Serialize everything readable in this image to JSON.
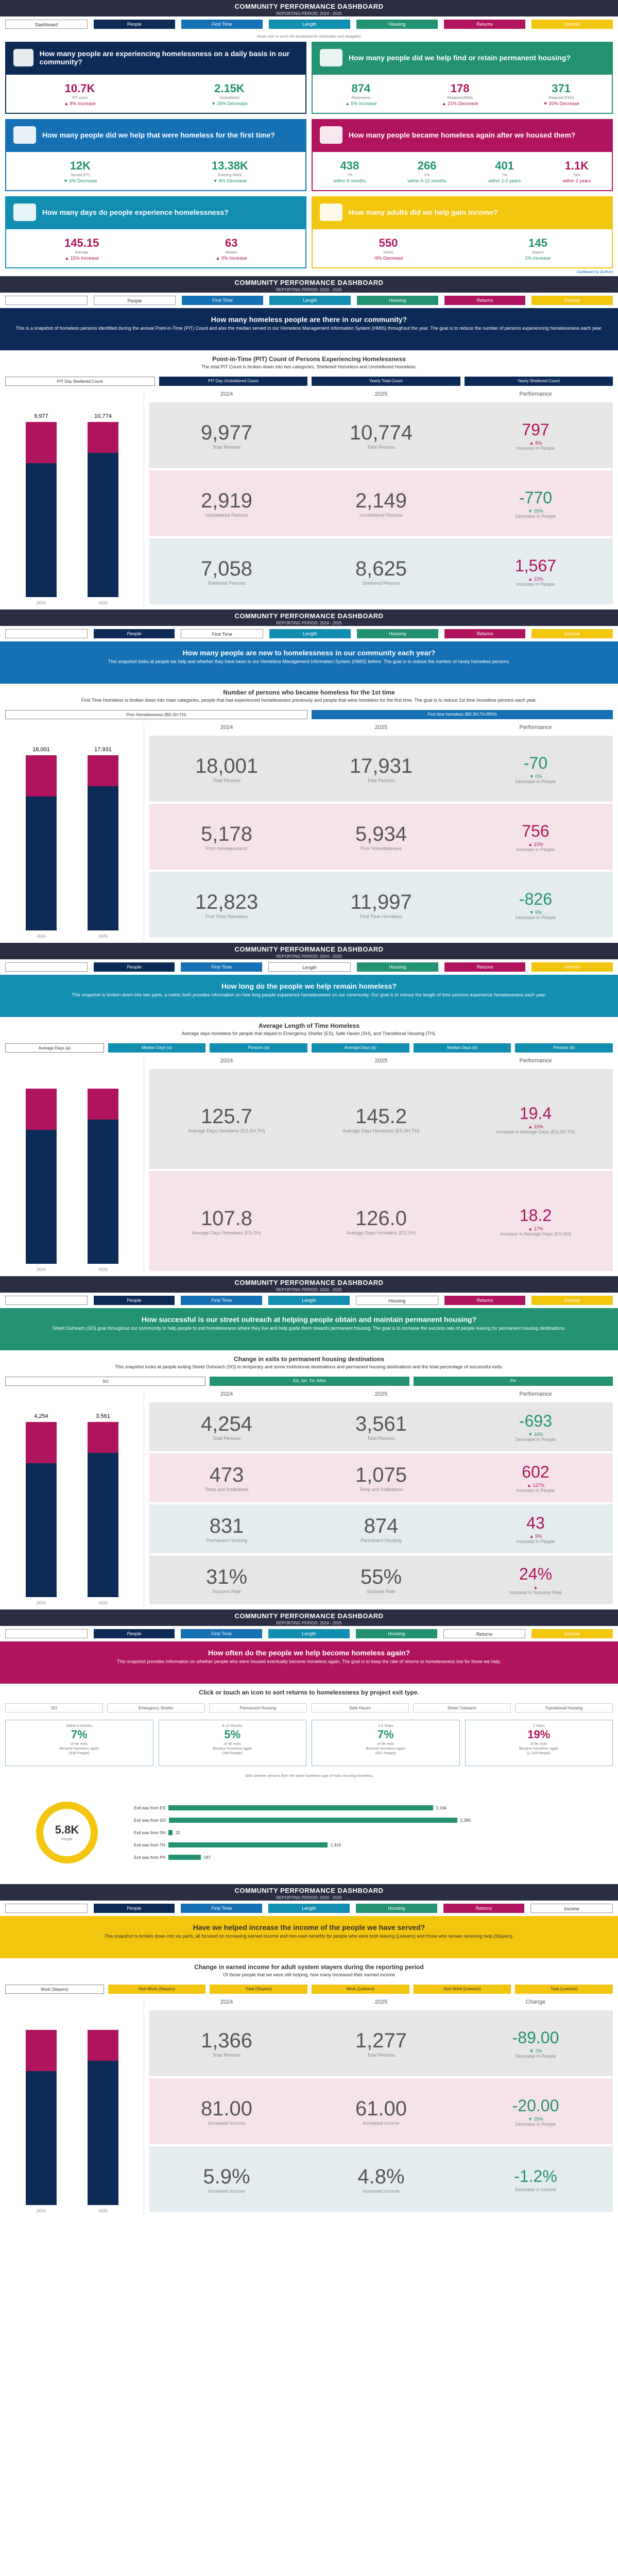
{
  "header": {
    "title": "COMMUNITY PERFORMANCE DASHBOARD",
    "subtitle": "REPORTING PERIOD: 2024 - 2025"
  },
  "nav": [
    "Dashboard",
    "People",
    "First Time",
    "Length",
    "Housing",
    "Returns",
    "Income"
  ],
  "hint": "Hover over or touch the dashboard for information and navigation",
  "tiles": {
    "t1": {
      "q": "How many people are experiencing homelessness on a daily basis in our community?",
      "a": "10.7K",
      "al": "PIT count",
      "ap": "▲ 8% Increase",
      "b": "2.15K",
      "bl": "Unsheltered",
      "bp": "▼ 26% Decrease"
    },
    "t2": {
      "q": "How many people did we help find or retain permanent housing?",
      "a": "874",
      "al": "Placements",
      "ap": "▲ 5% Increase",
      "b": "178",
      "bl": "Retained (RRH)",
      "bp": "▲ 21% Decrease",
      "c": "371",
      "cl": "Retained (PSH)",
      "cp": "▼ 20% Decrease"
    },
    "t3": {
      "q": "How many people did we help that were homeless for the first time?",
      "a": "12K",
      "al": "Served (FT)",
      "ap": "▼ 6% Decrease",
      "b": "13.38K",
      "bl": "Entering HMIS",
      "bp": "▼ 6% Decrease"
    },
    "t4": {
      "q": "How many people became homeless again after we housed them?",
      "a": "438",
      "al": "7%",
      "ap": "within 6 months",
      "b": "266",
      "bl": "5%",
      "bp": "within 6-12 months",
      "c": "401",
      "cl": "7%",
      "cp": "within 1-2 years",
      "d": "1.1K",
      "dl": "19%",
      "dp": "within 2 years"
    },
    "t5": {
      "q": "How many days do people experience homelessness?",
      "a": "145.15",
      "al": "Average",
      "ap": "▲ 15% Increase",
      "b": "63",
      "bl": "Median",
      "bp": "▲ 9% Increase"
    },
    "t6": {
      "q": "How many adults did we help gain income?",
      "a": "550",
      "al": "Adults",
      "ap": "-9% Decrease",
      "b": "145",
      "bl": "Stayers",
      "bp": "2% Increase"
    }
  },
  "foot": "Dashboard by [Author]",
  "s1": {
    "bt": "How many homeless people are there in our community?",
    "bd": "This is a snapshot of homeless persons identified during the annual Point-in-Time (PIT) Count and also the median served in our Homeless Management Information System (HMIS) throughout the year. The goal is to reduce the number of persons experiencing homelessness each year.",
    "st": "Point-in-Time (PIT) Count of Persons Experiencing Homelessness",
    "sb": "The total PIT Count is broken down into two categories, Sheltered Homeless and Unsheltered Homeless.",
    "btns": [
      "PIT Day Sheltered Count",
      "PIT Day Unsheltered Count",
      "Yearly Total Count",
      "Yearly Sheltered Count"
    ],
    "heads": [
      "2024",
      "2025",
      "Performance"
    ],
    "rows": [
      [
        "9,977",
        "Total Persons",
        "10,774",
        "Total Persons",
        "797",
        "▲ 8%",
        "Increase in People"
      ],
      [
        "2,919",
        "Unsheltered Persons",
        "2,149",
        "Unsheltered Persons",
        "-770",
        "▼ 26%",
        "Decrease in People"
      ],
      [
        "7,058",
        "Sheltered Persons",
        "8,625",
        "Sheltered Persons",
        "1,567",
        "▲ 22%",
        "Increase in People"
      ]
    ],
    "v1": "9,977",
    "v2": "10,774"
  },
  "s2": {
    "bt": "How many people are new to homelessness in our community each year?",
    "bd": "This snapshot looks at people we help and whether they have been in our Homeless Management Information System (HMIS) before. The goal is to reduce the number of newly homeless persons.",
    "st": "Number of persons who became homeless for the 1st time",
    "sb": "First Time Homeless is broken down into main categories, people that had experienced homelessness previously and people that were homeless for the first time. The goal is to reduce 1st time homeless persons each year.",
    "btns": [
      "Prior Homelessness (BD,SH,TH)",
      "First time homeless (BD,SH,TH,RRH)"
    ],
    "heads": [
      "2024",
      "2025",
      "Performance"
    ],
    "rows": [
      [
        "18,001",
        "Total Persons",
        "17,931",
        "Total Persons",
        "-70",
        "▼ 0%",
        "Decrease in People"
      ],
      [
        "5,178",
        "Prior Homelessness",
        "5,934",
        "Prior Homelessness",
        "756",
        "▲ 15%",
        "Increase in People"
      ],
      [
        "12,823",
        "First Time Homeless",
        "11,997",
        "First Time Homeless",
        "-826",
        "▼ 6%",
        "Decrease in People"
      ]
    ],
    "v1": "18,001",
    "v2": "17,931"
  },
  "s3": {
    "bt": "How long do the people we help remain homeless?",
    "bd": "This snapshot is broken down into two parts, a metric both provides information on how long people experience homelessness on our community. Our goal is to reduce the length of time persons experience homelessness each year.",
    "st": "Average Length of Time Homeless",
    "sb": "Average days homeless for people that stayed in Emergency Shelter (ES), Safe Haven (SH), and Transitional Housing (TH).",
    "btns": [
      "Average Days (a)",
      "Median Days (a)",
      "Persons (a)",
      "Average Days (b)",
      "Median Days (b)",
      "Persons (b)"
    ],
    "heads": [
      "2024",
      "2025",
      "Performance"
    ],
    "rows": [
      [
        "125.7",
        "Average Days Homeless (ES,SH,TH)",
        "145.2",
        "Average Days Homeless (ES,SH,TH)",
        "19.4",
        "▲ 15%",
        "Increase in Average Days (ES,SH,TH)"
      ],
      [
        "107.8",
        "Average Days Homeless (ES,SH)",
        "126.0",
        "Average Days Homeless (ES,SH)",
        "18.2",
        "▲ 17%",
        "Increase in Average Days (ES,SH)"
      ]
    ]
  },
  "s4": {
    "bt": "How successful is our street outreach at helping people obtain and maintain permanent housing?",
    "bd": "Street Outreach (SO) goal throughout our community to help people to exit homelessness where they live and help guide them towards permanent housing. The goal is to increase the success rate of people leaving for permanent housing destinations.",
    "st": "Change in exits to permanent housing destinations",
    "sb": "This snapshot looks at people exiting Street Outreach (SO) to temporary and some institutional destinations and permanent housing destinations and the total percentage of successful exits.",
    "btns": [
      "SO",
      "ES, SH, TH, RRH",
      "PH"
    ],
    "heads": [
      "2024",
      "2025",
      "Performance"
    ],
    "rows": [
      [
        "4,254",
        "Total Persons",
        "3,561",
        "Total Persons",
        "-693",
        "▼ 16%",
        "Decrease in People"
      ],
      [
        "473",
        "Temp and Institutions",
        "1,075",
        "Temp and Institutions",
        "602",
        "▲ 127%",
        "Increase in People"
      ],
      [
        "831",
        "Permanent Housing",
        "874",
        "Permanent Housing",
        "43",
        "▲ 5%",
        "Increase in People"
      ],
      [
        "31%",
        "Success Rate",
        "55%",
        "Success Rate",
        "24%",
        "▲",
        "Increase in Success Rate"
      ]
    ],
    "v1": "4,254",
    "v2": "3,561"
  },
  "s5": {
    "bt": "How often do the people we help become homeless again?",
    "bd": "This snapshot provides information on whether people who were housed eventually become homeless again. The goal is to keep the rate of returns to homelessness low for those we help.",
    "st": "Click or touch an icon to sort returns to homelessness by project exit type.",
    "types": [
      "SO",
      "Emergency Shelter",
      "Permanent Housing",
      "Safe Haven",
      "Street Outreach",
      "Transitional Housing"
    ],
    "tiles": [
      [
        "Within 6 Months",
        "7%",
        "of 6K exits",
        "Became homeless again",
        "(438 People)"
      ],
      [
        "6-12 Months",
        "5%",
        "of 6K exits",
        "Became homeless again",
        "(266 People)"
      ],
      [
        "1-2 Years",
        "7%",
        "of 6K exits",
        "Became homeless again",
        "(401 People)"
      ],
      [
        "2 Years",
        "19%",
        "of 6K exits",
        "Became homeless again",
        "(1,109 People)"
      ]
    ],
    "donut": "5.8K",
    "dl": "People",
    "bars": [
      [
        "Exit was from ES",
        "2,194"
      ],
      [
        "Exit was from SO",
        "2,390"
      ],
      [
        "Exit was from SH",
        "32"
      ],
      [
        "Exit was from TH",
        "1,319"
      ],
      [
        "Exit was from PH",
        "267"
      ]
    ],
    "bt2": "With whether persons from the same homeless type of exits returning homeless"
  },
  "s6": {
    "bt": "Have we helped increase the income of the people we have served?",
    "bd": "This snapshot is broken down into six parts, all focused on increasing earned income and non-cash benefits for people who were both leaving (Leavers) and those who remain receiving help (Stayers).",
    "st": "Change in earned income for adult system stayers during the reporting period",
    "sb": "Of those people that we were still helping, how many increased their earned income",
    "btns": [
      "Work (Stayers)",
      "Non-Work (Stayers)",
      "Total (Stayers)",
      "Work (Leavers)",
      "Non-Work (Leavers)",
      "Total (Leavers)"
    ],
    "heads": [
      "2024",
      "2025",
      "Change"
    ],
    "rows": [
      [
        "1,366",
        "Total Persons",
        "1,277",
        "Total Persons",
        "-89.00",
        "▼ 7%",
        "Decrease in People"
      ],
      [
        "81.00",
        "Increased Income",
        "61.00",
        "Increased Income",
        "-20.00",
        "▼ 25%",
        "Decrease in People"
      ],
      [
        "5.9%",
        "Increased Income",
        "4.8%",
        "Increased Income",
        "-1.2%",
        "",
        "Decrease in Income"
      ]
    ]
  }
}
